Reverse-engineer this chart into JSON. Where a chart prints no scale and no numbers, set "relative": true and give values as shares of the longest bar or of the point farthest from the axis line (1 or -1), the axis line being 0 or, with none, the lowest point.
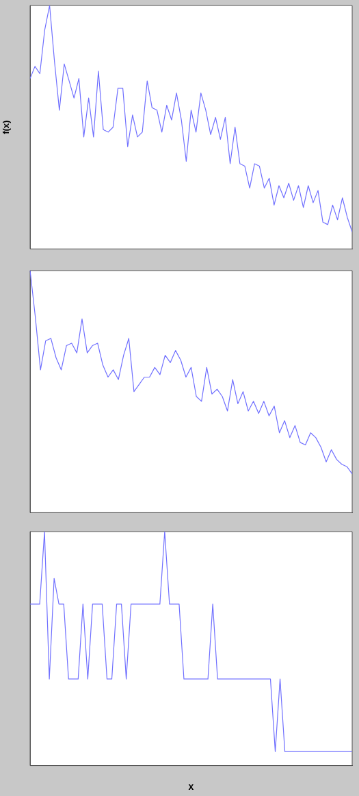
{
  "chart_data": [
    {
      "type": "line",
      "ylabel": "f(x)",
      "relative": true,
      "grid": false,
      "legend": false,
      "marker": "none",
      "line_style": "solid",
      "color": "#7070ff",
      "categories": [
        null,
        null,
        null,
        null,
        null,
        null,
        null,
        null,
        null,
        null,
        null,
        null,
        null,
        null,
        null,
        null,
        null,
        null,
        null,
        null,
        null,
        null,
        null,
        null,
        null,
        null,
        null,
        null,
        null,
        null,
        null,
        null,
        null,
        null,
        null,
        null,
        null,
        null,
        null,
        null,
        null,
        null,
        null,
        null,
        null,
        null,
        null,
        null,
        null,
        null,
        null,
        null,
        null,
        null,
        null,
        null,
        null,
        null,
        null,
        null,
        null,
        null,
        null,
        null,
        null,
        null,
        null
      ],
      "values": [
        0.7,
        0.75,
        0.72,
        0.9,
        1.0,
        0.77,
        0.57,
        0.76,
        0.69,
        0.62,
        0.7,
        0.46,
        0.62,
        0.46,
        0.73,
        0.49,
        0.48,
        0.5,
        0.66,
        0.66,
        0.42,
        0.55,
        0.46,
        0.48,
        0.69,
        0.58,
        0.57,
        0.48,
        0.59,
        0.53,
        0.64,
        0.53,
        0.36,
        0.57,
        0.48,
        0.64,
        0.57,
        0.47,
        0.54,
        0.45,
        0.54,
        0.35,
        0.5,
        0.35,
        0.34,
        0.25,
        0.35,
        0.34,
        0.25,
        0.29,
        0.18,
        0.26,
        0.21,
        0.27,
        0.2,
        0.26,
        0.17,
        0.26,
        0.19,
        0.24,
        0.11,
        0.1,
        0.18,
        0.12,
        0.21,
        0.13,
        0.07
      ]
    },
    {
      "type": "line",
      "relative": true,
      "grid": false,
      "legend": false,
      "marker": "none",
      "line_style": "solid",
      "color": "#7070ff",
      "categories": [
        null,
        null,
        null,
        null,
        null,
        null,
        null,
        null,
        null,
        null,
        null,
        null,
        null,
        null,
        null,
        null,
        null,
        null,
        null,
        null,
        null,
        null,
        null,
        null,
        null,
        null,
        null,
        null,
        null,
        null,
        null,
        null,
        null,
        null,
        null,
        null,
        null,
        null,
        null,
        null,
        null,
        null,
        null,
        null,
        null,
        null,
        null,
        null,
        null,
        null,
        null,
        null,
        null,
        null,
        null,
        null,
        null,
        null,
        null,
        null,
        null,
        null,
        null
      ],
      "values": [
        1.0,
        0.81,
        0.59,
        0.71,
        0.72,
        0.64,
        0.59,
        0.69,
        0.7,
        0.66,
        0.8,
        0.66,
        0.69,
        0.7,
        0.61,
        0.56,
        0.59,
        0.55,
        0.65,
        0.72,
        0.5,
        0.53,
        0.56,
        0.56,
        0.6,
        0.57,
        0.65,
        0.62,
        0.67,
        0.63,
        0.56,
        0.6,
        0.48,
        0.46,
        0.6,
        0.49,
        0.51,
        0.48,
        0.42,
        0.55,
        0.45,
        0.5,
        0.42,
        0.46,
        0.41,
        0.46,
        0.4,
        0.44,
        0.33,
        0.38,
        0.31,
        0.36,
        0.29,
        0.28,
        0.33,
        0.31,
        0.27,
        0.21,
        0.26,
        0.22,
        0.2,
        0.19,
        0.16
      ]
    },
    {
      "type": "line",
      "xlabel": "x",
      "relative": true,
      "grid": false,
      "legend": false,
      "marker": "none",
      "line_style": "solid",
      "color": "#7070ff",
      "categories": [
        null,
        null,
        null,
        null,
        null,
        null,
        null,
        null,
        null,
        null,
        null,
        null,
        null,
        null,
        null,
        null,
        null,
        null,
        null,
        null,
        null,
        null,
        null,
        null,
        null,
        null,
        null,
        null,
        null,
        null,
        null,
        null,
        null,
        null,
        null,
        null,
        null,
        null,
        null,
        null,
        null,
        null,
        null,
        null,
        null,
        null,
        null,
        null,
        null,
        null,
        null,
        null,
        null,
        null,
        null,
        null,
        null,
        null,
        null,
        null,
        null,
        null,
        null,
        null,
        null,
        null,
        null,
        null
      ],
      "values": [
        0.69,
        0.69,
        0.69,
        1.0,
        0.37,
        0.8,
        0.69,
        0.69,
        0.37,
        0.37,
        0.37,
        0.69,
        0.37,
        0.69,
        0.69,
        0.69,
        0.37,
        0.37,
        0.69,
        0.69,
        0.37,
        0.69,
        0.69,
        0.69,
        0.69,
        0.69,
        0.69,
        0.69,
        1.0,
        0.69,
        0.69,
        0.69,
        0.37,
        0.37,
        0.37,
        0.37,
        0.37,
        0.37,
        0.69,
        0.37,
        0.37,
        0.37,
        0.37,
        0.37,
        0.37,
        0.37,
        0.37,
        0.37,
        0.37,
        0.37,
        0.37,
        0.06,
        0.37,
        0.06,
        0.06,
        0.06,
        0.06,
        0.06,
        0.06,
        0.06,
        0.06,
        0.06,
        0.06,
        0.06,
        0.06,
        0.06,
        0.06,
        0.06
      ]
    }
  ]
}
